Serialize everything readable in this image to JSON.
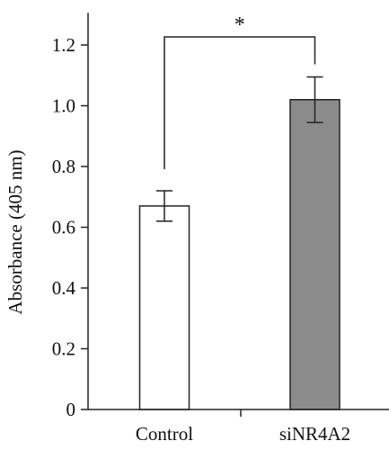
{
  "chart_data": {
    "type": "bar",
    "title": "",
    "xlabel": "",
    "ylabel": "Absorbance (405 nm)",
    "ylim": [
      0,
      1.3
    ],
    "yticks": [
      "0",
      "0.2",
      "0.4",
      "0.6",
      "0.8",
      "1.0",
      "1.2"
    ],
    "ytick_values": [
      0,
      0.2,
      0.4,
      0.6,
      0.8,
      1.0,
      1.2
    ],
    "categories": [
      "Control",
      "siNR4A2"
    ],
    "values": [
      0.67,
      1.02
    ],
    "errors": [
      0.05,
      0.075
    ],
    "bar_colors": [
      "#ffffff",
      "#8c8c8c"
    ],
    "significance": {
      "between": [
        0,
        1
      ],
      "label": "*"
    }
  }
}
